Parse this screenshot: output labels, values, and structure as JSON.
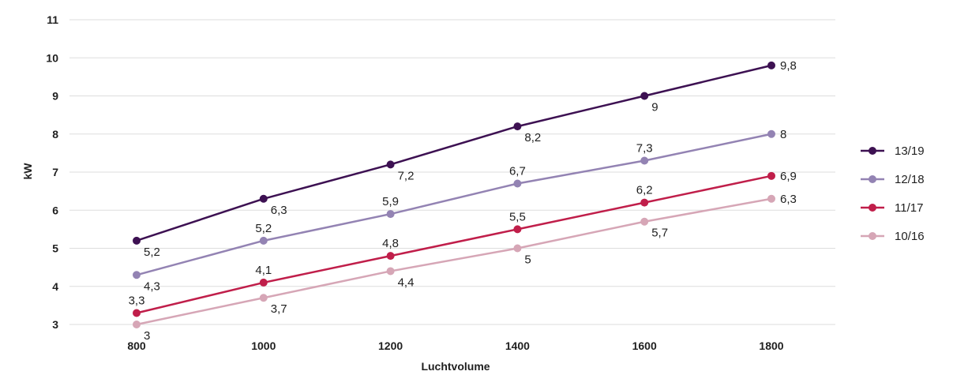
{
  "chart_data": {
    "type": "line",
    "title": "",
    "xlabel": "Luchtvolume",
    "ylabel": "kW",
    "x": [
      800,
      1000,
      1200,
      1400,
      1600,
      1800
    ],
    "x_tick_labels": [
      "800",
      "1000",
      "1200",
      "1400",
      "1600",
      "1800"
    ],
    "ylim": [
      3,
      11
    ],
    "y_ticks": [
      3,
      4,
      5,
      6,
      7,
      8,
      9,
      10,
      11
    ],
    "y_tick_labels": [
      "3",
      "4",
      "5",
      "6",
      "7",
      "8",
      "9",
      "10",
      "11"
    ],
    "grid": true,
    "legend_position": "right",
    "series": [
      {
        "name": "13/19",
        "color": "#3d1152",
        "values": [
          5.2,
          6.3,
          7.2,
          8.2,
          9,
          9.8
        ],
        "labels": [
          "5,2",
          "6,3",
          "7,2",
          "8,2",
          "9",
          "9,8"
        ],
        "label_pos": [
          "below",
          "below",
          "below",
          "below",
          "below",
          "right"
        ]
      },
      {
        "name": "12/18",
        "color": "#9383b3",
        "values": [
          4.3,
          5.2,
          5.9,
          6.7,
          7.3,
          8
        ],
        "labels": [
          "4,3",
          "5,2",
          "5,9",
          "6,7",
          "7,3",
          "8"
        ],
        "label_pos": [
          "below",
          "above",
          "above",
          "above",
          "above",
          "right"
        ]
      },
      {
        "name": "11/17",
        "color": "#c01e4a",
        "values": [
          3.3,
          4.1,
          4.8,
          5.5,
          6.2,
          6.9
        ],
        "labels": [
          "3,3",
          "4,1",
          "4,8",
          "5,5",
          "6,2",
          "6,9"
        ],
        "label_pos": [
          "above",
          "above",
          "above",
          "above",
          "above",
          "right"
        ]
      },
      {
        "name": "10/16",
        "color": "#d6a6b6",
        "values": [
          3,
          3.7,
          4.4,
          5,
          5.7,
          6.3
        ],
        "labels": [
          "3",
          "3,7",
          "4,4",
          "5",
          "5,7",
          "6,3"
        ],
        "label_pos": [
          "below",
          "below",
          "below",
          "below",
          "below",
          "right"
        ]
      }
    ]
  }
}
